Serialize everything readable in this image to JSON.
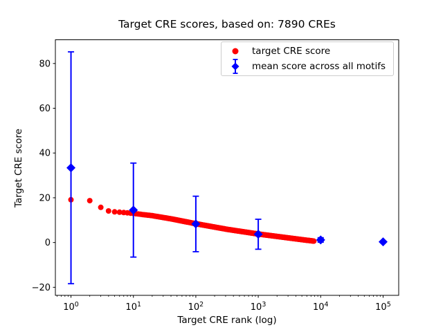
{
  "chart_data": {
    "type": "scatter",
    "title": "Target CRE scores, based on: 7890 CREs",
    "xlabel": "Target CRE rank (log)",
    "ylabel": "Target CRE score",
    "x_scale": "log",
    "xlim_log10": [
      -0.25,
      5.25
    ],
    "ylim": [
      -23.6,
      90.6
    ],
    "x_tick_exponents": [
      0,
      1,
      2,
      3,
      4,
      5
    ],
    "y_ticks": [
      -20,
      0,
      20,
      40,
      60,
      80
    ],
    "grid": false,
    "background": "#ffffff",
    "axis_color": "#000000",
    "legend": {
      "location": "upper right",
      "entries": [
        {
          "label": "target CRE score",
          "marker": "circle",
          "color": "#ff0000"
        },
        {
          "label": "mean score across all motifs",
          "marker": "diamond-errorbar",
          "color": "#0000ff"
        }
      ]
    },
    "series": [
      {
        "name": "target CRE score",
        "marker": "circle",
        "color": "#ff0000",
        "marker_radius_px": 4,
        "n_points": 7890,
        "rank_range": [
          1,
          7890
        ],
        "curve_log10rank_to_score": [
          [
            0,
            19.1
          ],
          [
            0.301,
            18.7
          ],
          [
            0.477,
            15.7
          ],
          [
            0.6,
            14.1
          ],
          [
            0.7,
            13.7
          ],
          [
            0.85,
            13.4
          ],
          [
            1.0,
            13.0
          ],
          [
            1.3,
            12.0
          ],
          [
            1.6,
            10.6
          ],
          [
            2.0,
            8.4
          ],
          [
            2.5,
            5.9
          ],
          [
            3.0,
            3.8
          ],
          [
            3.5,
            2.0
          ],
          [
            3.897,
            0.6
          ]
        ]
      },
      {
        "name": "mean score across all motifs",
        "marker": "diamond",
        "color": "#0000ff",
        "marker_half_px": 6.5,
        "points": [
          {
            "x": 1,
            "y": 33.4,
            "yerr": 51.8
          },
          {
            "x": 10,
            "y": 14.5,
            "yerr": 21.0
          },
          {
            "x": 100,
            "y": 8.3,
            "yerr": 12.4
          },
          {
            "x": 1000,
            "y": 3.7,
            "yerr": 6.7
          },
          {
            "x": 10000,
            "y": 1.15,
            "yerr": 1.0
          },
          {
            "x": 100000,
            "y": 0.3,
            "yerr": 0.4
          }
        ]
      }
    ]
  }
}
